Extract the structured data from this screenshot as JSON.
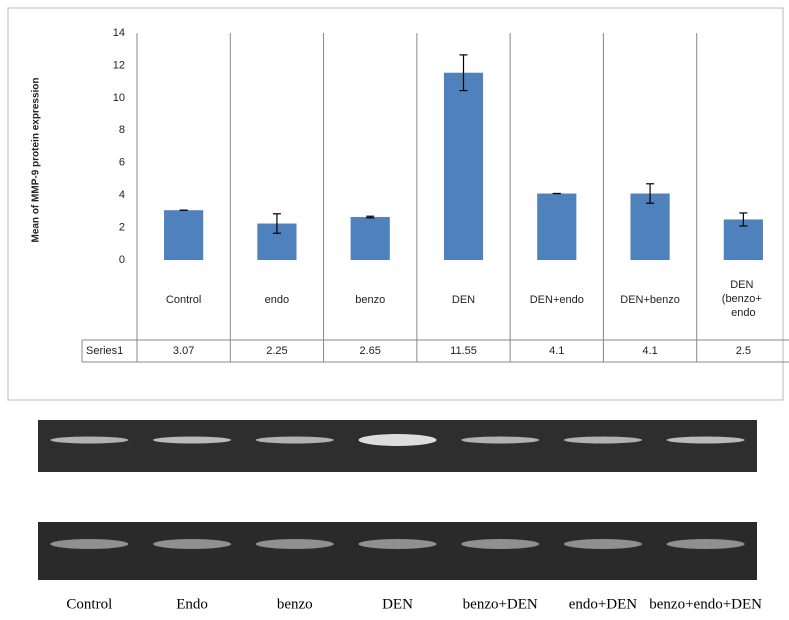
{
  "chart_data": {
    "type": "bar",
    "y_label": "Mean of MMP-9 protein expression",
    "categories": [
      "Control",
      "endo",
      "benzo",
      "DEN",
      "DEN+endo",
      "DEN+benzo",
      "DEN (benzo+ endo"
    ],
    "series": [
      {
        "name": "Series1",
        "color": "#4f81bd",
        "values": [
          3.07,
          2.25,
          2.65,
          11.55,
          4.1,
          4.1,
          2.5
        ],
        "errors": [
          0,
          0.6,
          0.05,
          1.1,
          0,
          0.6,
          0.4
        ]
      }
    ],
    "ylim": [
      0,
      14
    ],
    "yticks": [
      0,
      2,
      4,
      6,
      8,
      10,
      12,
      14
    ],
    "data_table": true
  },
  "gel": {
    "lane_labels": [
      "Control",
      "Endo",
      "benzo",
      "DEN",
      "benzo+DEN",
      "endo+DEN",
      "benzo+endo+DEN"
    ]
  }
}
